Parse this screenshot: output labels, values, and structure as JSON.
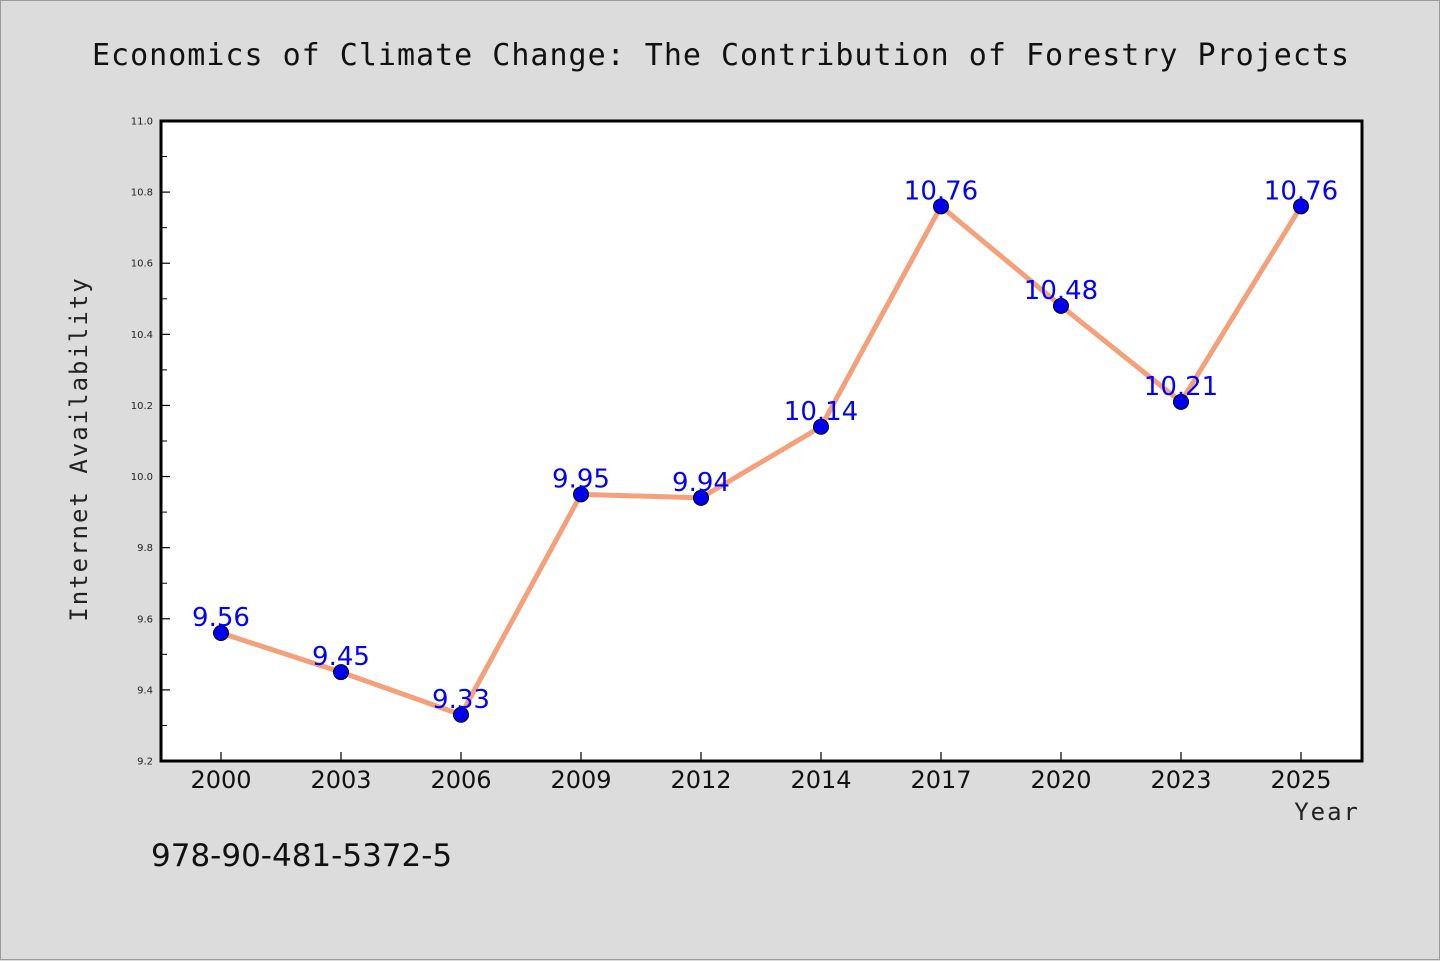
{
  "chart_data": {
    "type": "line",
    "title": "Economics of Climate Change: The Contribution of Forestry Projects",
    "xlabel": "Year",
    "ylabel": "Internet Availability",
    "categories": [
      "2000",
      "2003",
      "2006",
      "2009",
      "2012",
      "2014",
      "2017",
      "2020",
      "2023",
      "2025"
    ],
    "series": [
      {
        "values": [
          9.56,
          9.45,
          9.33,
          9.95,
          9.94,
          10.14,
          10.76,
          10.48,
          10.21,
          10.76
        ],
        "data_labels": [
          "9.56",
          "9.45",
          "9.33",
          "9.95",
          "9.94",
          "10.14",
          "10.76",
          "10.48",
          "10.21",
          "10.76"
        ],
        "line_color": "#f4a07a",
        "marker_color": "#0000ee",
        "label_color": "#0000ff"
      }
    ],
    "ylim": [
      9.2,
      11.0
    ],
    "yticks": [
      "9.2",
      "9.4",
      "9.6",
      "9.8",
      "10.0",
      "10.2",
      "10.4",
      "10.6",
      "10.8",
      "11.0"
    ],
    "grid": false,
    "legend": "none"
  },
  "footer": {
    "isbn": "978-90-481-5372-5"
  }
}
